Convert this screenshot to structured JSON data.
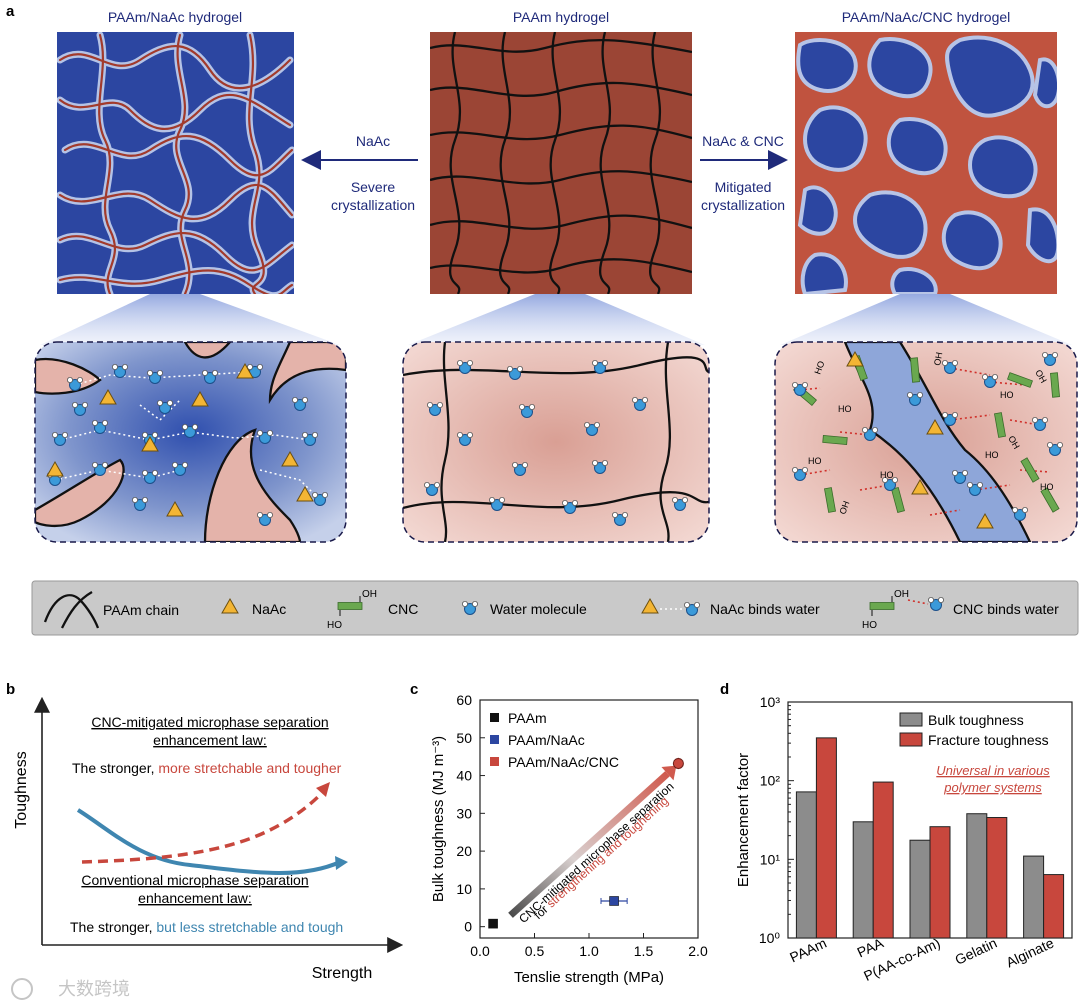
{
  "panel_a": {
    "label": "a",
    "titles": {
      "left": "PAAm/NaAc hydrogel",
      "center": "PAAm hydrogel",
      "right": "PAAm/NaAc/CNC hydrogel"
    },
    "arrow_left": {
      "top": "NaAc",
      "bottom_1": "Severe",
      "bottom_2": "crystallization"
    },
    "arrow_right": {
      "top": "NaAc & CNC",
      "bottom_1": "Mitigated",
      "bottom_2": "crystallization"
    },
    "chem_label": "HO",
    "chem_label_2": "OH",
    "colors": {
      "paam": "#9b4535",
      "water_phase": "#2c46a1",
      "pink": "#e4b3aa",
      "cnc": "#6aa84f",
      "naac": "#f3b534"
    }
  },
  "legend": {
    "items": [
      "PAAm chain",
      "NaAc",
      "CNC",
      "Water molecule",
      "NaAc binds water",
      "CNC binds water"
    ],
    "oh": "OH",
    "ho": "HO"
  },
  "panel_b": {
    "label": "b",
    "ylabel": "Toughness",
    "xlabel": "Strength",
    "law1_line1": "CNC-mitigated microphase separation",
    "law1_line2": "enhancement law:",
    "law1_text_a": "The stronger,",
    "law1_text_b": "more stretchable and tougher",
    "law2_line1": "Conventional microphase separation",
    "law2_line2": "enhancement law:",
    "law2_text_a": "The stronger,",
    "law2_text_b": "but less stretchable and tough"
  },
  "panel_c": {
    "label": "c",
    "chart_data": {
      "type": "scatter",
      "xlabel": "Tenslie strength (MPa)",
      "ylabel": "Bulk toughness (MJ m⁻³)",
      "xlim": [
        0,
        2.0
      ],
      "ylim": [
        -3,
        60
      ],
      "xticks": [
        "0.0",
        "0.5",
        "1.0",
        "1.5",
        "2.0"
      ],
      "yticks": [
        "0",
        "10",
        "20",
        "30",
        "40",
        "50",
        "60"
      ],
      "series": [
        {
          "name": "PAAm",
          "x": 0.12,
          "y": 0.8,
          "color": "#111111"
        },
        {
          "name": "PAAm/NaAc",
          "x": 1.23,
          "y": 6.8,
          "xerr": 0.12,
          "color": "#2c46a1"
        },
        {
          "name": "PAAm/NaAc/CNC",
          "x": 1.82,
          "y": 43.2,
          "xerr": 0.04,
          "yerr": 1.5,
          "color": "#c8473d"
        }
      ],
      "annotation_1": "CNC-mitigated microphase separation",
      "annotation_2a": "for",
      "annotation_2b": "strengthening and toughening"
    }
  },
  "panel_d": {
    "label": "d",
    "chart_data": {
      "type": "bar",
      "ylabel": "Enhancement factor",
      "yscale": "log",
      "ylim": [
        1,
        1000
      ],
      "yticks": [
        "10⁰",
        "10¹",
        "10²",
        "10³"
      ],
      "categories": [
        "PAAm",
        "PAA",
        "P(AA-co-Am)",
        "Gelatin",
        "Alginate"
      ],
      "series": [
        {
          "name": "Bulk toughness",
          "values": [
            72,
            30,
            17.5,
            38,
            11
          ],
          "color": "#8c8c8c"
        },
        {
          "name": "Fracture toughness",
          "values": [
            350,
            96,
            26,
            34,
            6.4
          ],
          "color": "#c8473d"
        }
      ],
      "annotation_1": "Universal in various",
      "annotation_2": "polymer systems"
    }
  },
  "watermark": "大数跨境"
}
